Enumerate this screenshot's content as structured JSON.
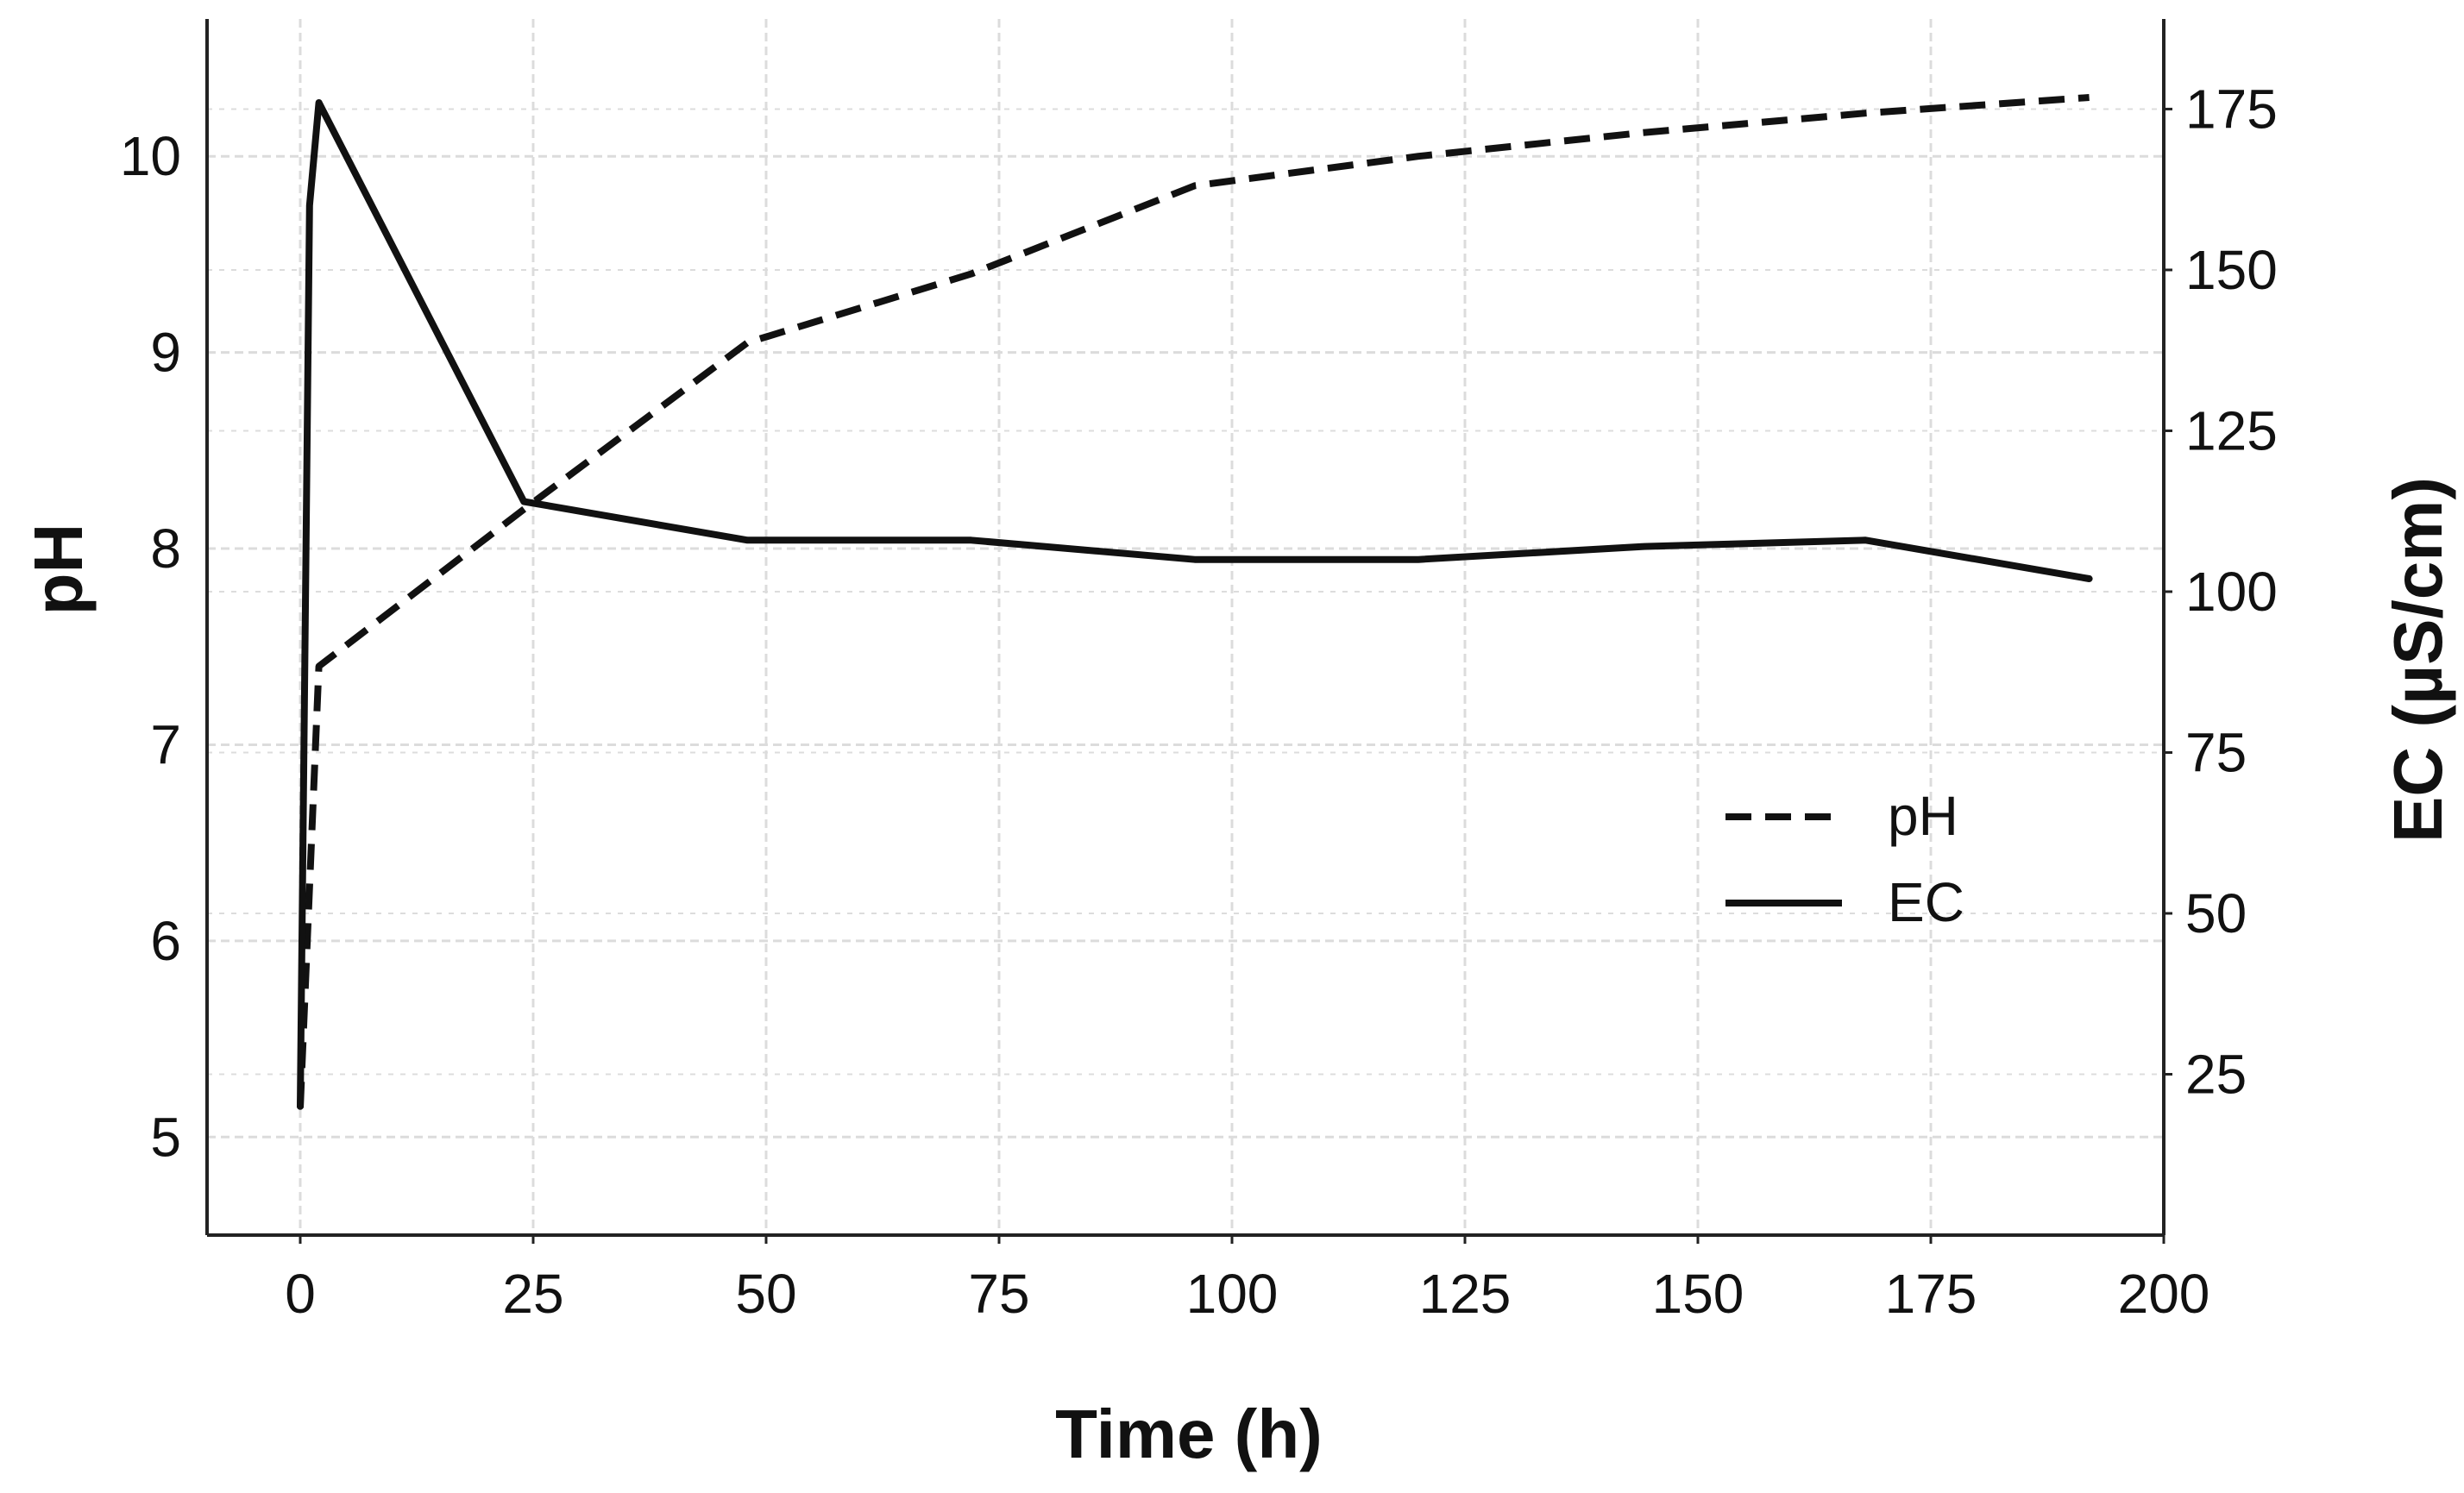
{
  "chart_data": {
    "type": "line",
    "xlabel": "Time (h)",
    "ylabel": "pH",
    "y2label": "EC (µS/cm)",
    "xlim": [
      -10,
      200
    ],
    "ylim": [
      4.5,
      10.7
    ],
    "y2lim": [
      0,
      189
    ],
    "x_ticks": [
      "0",
      "25",
      "50",
      "75",
      "100",
      "125",
      "150",
      "175",
      "200"
    ],
    "x_tick_values": [
      0,
      25,
      50,
      75,
      100,
      125,
      150,
      175,
      200
    ],
    "y_ticks": [
      "5",
      "6",
      "7",
      "8",
      "9",
      "10"
    ],
    "y_tick_values": [
      5,
      6,
      7,
      8,
      9,
      10
    ],
    "y2_ticks": [
      "25",
      "50",
      "75",
      "100",
      "125",
      "150",
      "175"
    ],
    "y2_tick_values": [
      25,
      50,
      75,
      100,
      125,
      150,
      175
    ],
    "grid": true,
    "legend_position": "center-right",
    "series": [
      {
        "name": "pH",
        "axis": "left",
        "style": "dashed",
        "x": [
          0,
          2,
          24,
          48,
          72,
          96,
          120,
          144,
          168,
          192
        ],
        "y": [
          5.15,
          7.4,
          8.2,
          9.05,
          9.4,
          9.85,
          10.0,
          10.12,
          10.22,
          10.3
        ]
      },
      {
        "name": "EC",
        "axis": "right",
        "style": "solid",
        "x": [
          0,
          1,
          2,
          24,
          48,
          72,
          96,
          120,
          144,
          168,
          192
        ],
        "y": [
          20,
          160,
          176,
          114,
          108,
          108,
          105,
          105,
          107,
          108,
          102
        ]
      }
    ]
  },
  "legend": {
    "ph_label": "pH",
    "ec_label": "EC"
  },
  "colors": {
    "line": "#111111",
    "grid": "#dcdcdc",
    "axis": "#222222"
  }
}
